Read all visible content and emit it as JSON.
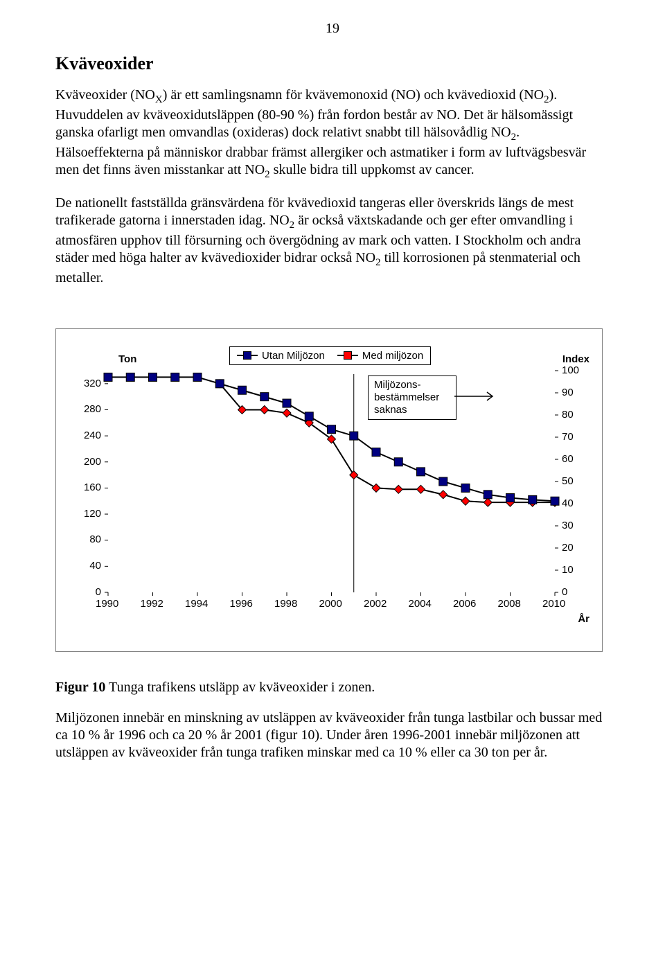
{
  "page_number": "19",
  "section_title": "Kväveoxider",
  "paragraphs": {
    "p1": "Kväveoxider (NO",
    "p1_sub1": "X",
    "p1_b": ") är ett samlingsnamn för kvävemonoxid (NO) och kvävedioxid (NO",
    "p1_sub2": "2",
    "p1_c": "). Huvuddelen av kväveoxidutsläppen (80-90 %) från fordon består av NO. Det är hälsomässigt ganska ofarligt men omvandlas (oxideras) dock relativt snabbt till hälsovådlig NO",
    "p1_sub3": "2",
    "p1_d": ". Hälsoeffekterna på människor drabbar främst allergiker och astmatiker i form av luftvägsbesvär men det finns även misstankar att NO",
    "p1_sub4": "2",
    "p1_e": " skulle bidra till uppkomst av cancer.",
    "p2a": "De nationellt fastställda gränsvärdena för kvävedioxid tangeras eller överskrids längs de mest trafikerade gatorna i innerstaden idag. NO",
    "p2_sub1": "2",
    "p2b": " är också växtskadande och ger efter omvandling i atmosfären upphov till försurning och övergödning av mark och vatten. I Stockholm och andra städer med höga halter av kvävedioxider bidrar också NO",
    "p2_sub2": "2",
    "p2c": " till korrosionen på stenmaterial och metaller."
  },
  "chart": {
    "type": "line",
    "left_axis": {
      "title": "Ton",
      "ticks": [
        0,
        40,
        80,
        120,
        160,
        200,
        240,
        280,
        320
      ],
      "ylim": [
        0,
        340
      ]
    },
    "right_axis": {
      "title": "Index",
      "ticks": [
        0,
        10,
        20,
        30,
        40,
        50,
        60,
        70,
        80,
        90,
        100
      ]
    },
    "x_axis": {
      "title": "År",
      "ticks": [
        1990,
        1992,
        1994,
        1996,
        1998,
        2000,
        2002,
        2004,
        2006,
        2008,
        2010
      ],
      "xlim": [
        1990,
        2010
      ]
    },
    "legend": {
      "s1": "Utan Miljözon",
      "s2": "Med miljözon"
    },
    "note": {
      "line1": "Miljözons-",
      "line2": "bestämmelser",
      "line3": "saknas"
    },
    "colors": {
      "s1_line": "#000000",
      "s1_marker_fill": "#000080",
      "s1_marker_stroke": "#000000",
      "s2_line": "#000000",
      "s2_marker_fill": "#ff0000",
      "s2_marker_stroke": "#000000",
      "frame": "#808080",
      "background": "#ffffff"
    },
    "marker": {
      "s1": "square",
      "s2": "diamond",
      "size": 12,
      "line_width": 2
    },
    "series_utan": {
      "years": [
        1990,
        1991,
        1992,
        1993,
        1994,
        1995,
        1996,
        1997,
        1998,
        1999,
        2000,
        2001,
        2002,
        2003,
        2004,
        2005,
        2006,
        2007,
        2008,
        2009,
        2010
      ],
      "values": [
        330,
        330,
        330,
        330,
        330,
        320,
        310,
        300,
        290,
        270,
        250,
        240,
        215,
        200,
        185,
        170,
        160,
        150,
        145,
        142,
        140
      ]
    },
    "series_med": {
      "years": [
        1995,
        1996,
        1997,
        1998,
        1999,
        2000,
        2001,
        2002,
        2003,
        2004,
        2005,
        2006,
        2007,
        2008,
        2009,
        2010
      ],
      "values": [
        320,
        280,
        280,
        275,
        260,
        235,
        180,
        160,
        158,
        158,
        150,
        140,
        138,
        138,
        138,
        138
      ]
    }
  },
  "caption": {
    "label": "Figur 10",
    "text": " Tunga trafikens utsläpp av kväveoxider i zonen."
  },
  "para3": "Miljözonen innebär en minskning av utsläppen av kväveoxider från tunga lastbilar och bussar med ca 10 % år 1996 och ca 20 % år 2001 (figur 10). Under åren 1996-2001 innebär miljözonen att utsläppen av kväveoxider från tunga trafiken minskar med ca 10 % eller ca 30 ton per år."
}
